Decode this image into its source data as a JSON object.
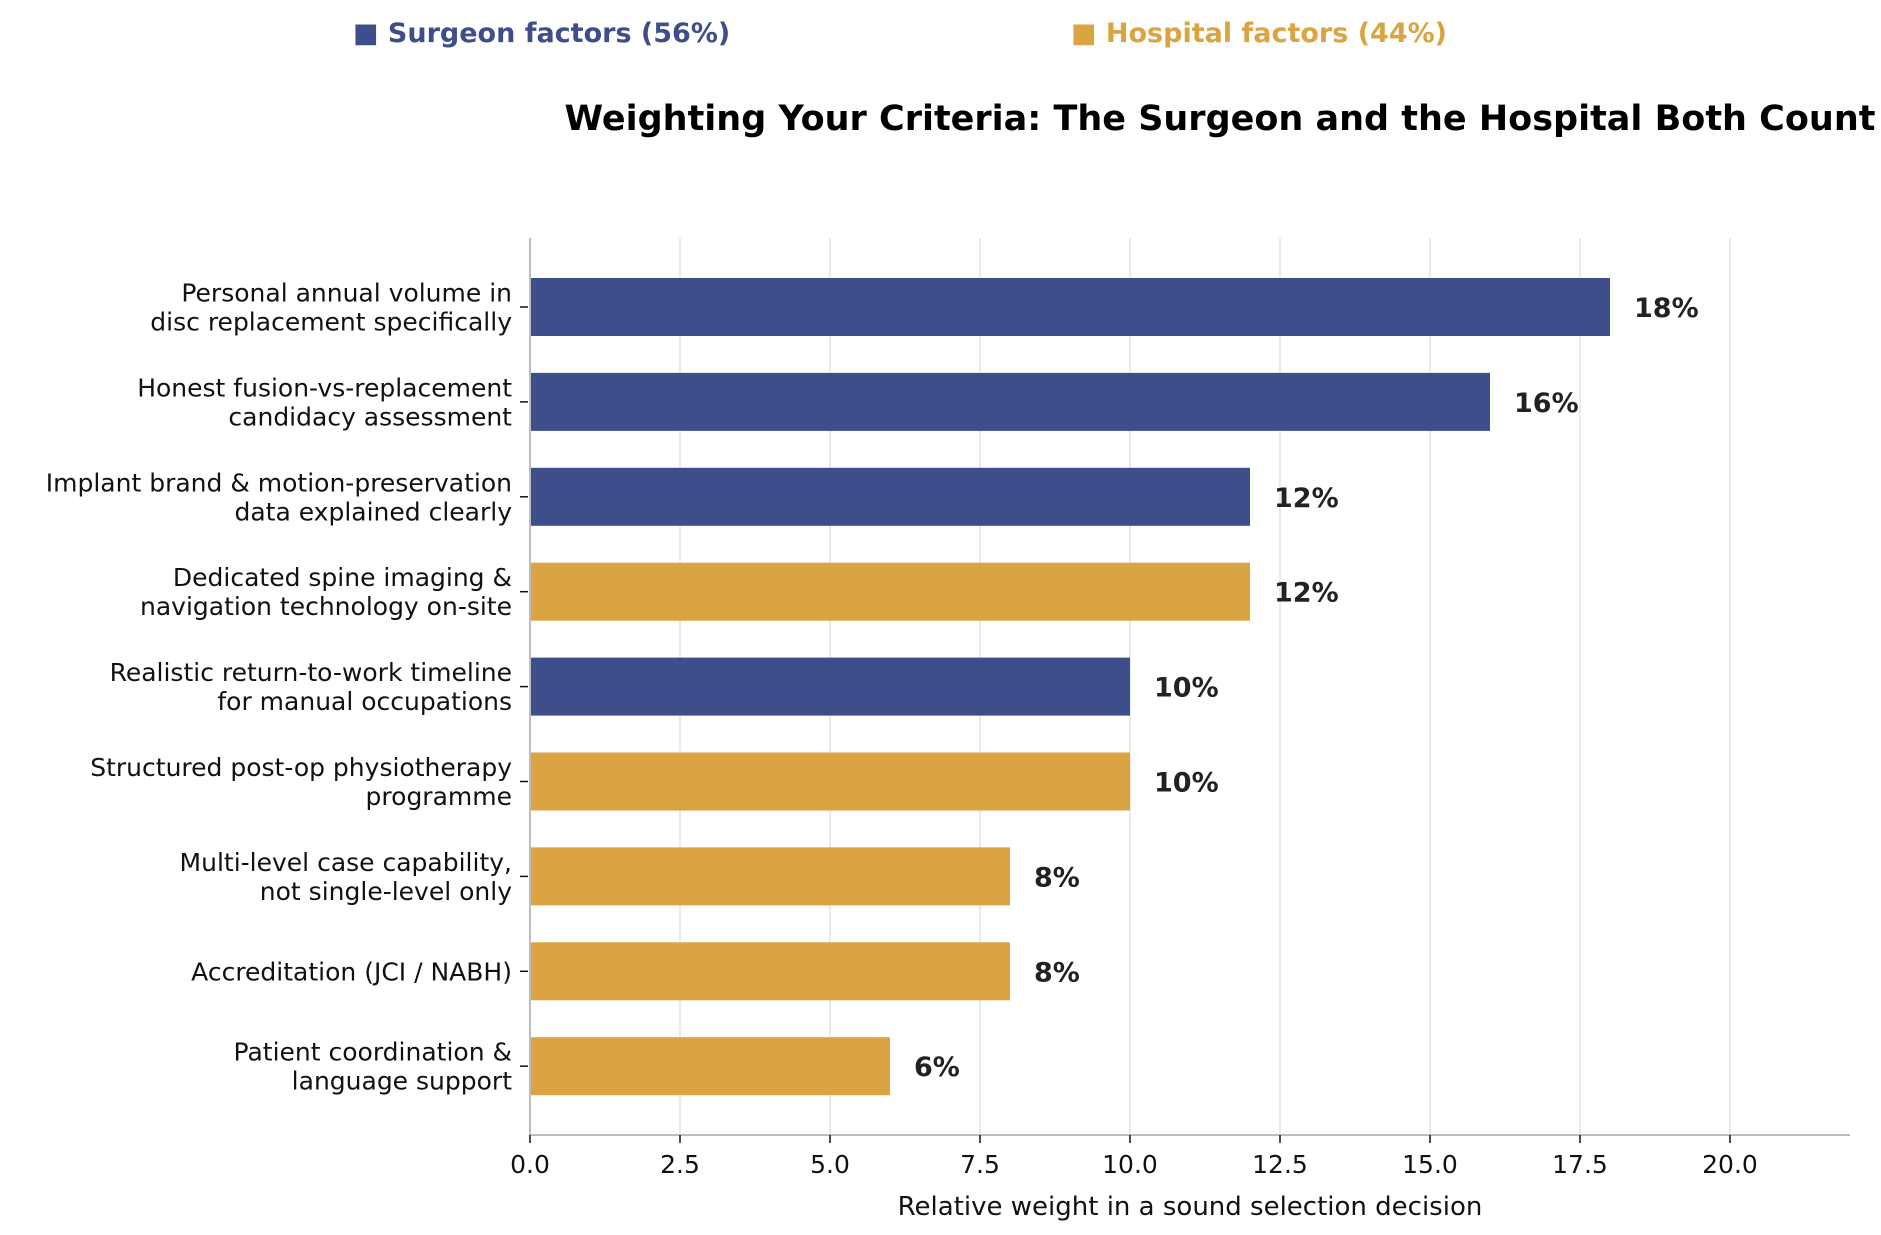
{
  "chart_data": {
    "type": "bar",
    "orientation": "horizontal",
    "title": "Weighting Your Criteria: The Surgeon and the Hospital Both Count",
    "xlabel": "Relative weight in a sound selection decision",
    "ylabel": "",
    "xlim": [
      0,
      22
    ],
    "xticks": [
      0.0,
      2.5,
      5.0,
      7.5,
      10.0,
      12.5,
      15.0,
      17.5,
      20.0
    ],
    "xtick_labels": [
      "0.0",
      "2.5",
      "5.0",
      "7.5",
      "10.0",
      "12.5",
      "15.0",
      "17.5",
      "20.0"
    ],
    "grid": "vertical",
    "legend": {
      "placement": "top",
      "entries": [
        {
          "marker": "■",
          "label": "Surgeon factors (56%)",
          "color": "#3d4e8a"
        },
        {
          "marker": "■",
          "label": "Hospital factors (44%)",
          "color": "#d9a441"
        }
      ]
    },
    "categories": [
      [
        "Personal annual volume in",
        "disc replacement specifically"
      ],
      [
        "Honest fusion-vs-replacement",
        "candidacy assessment"
      ],
      [
        "Implant brand & motion-preservation",
        "data explained clearly"
      ],
      [
        "Dedicated spine imaging &",
        "navigation technology on-site"
      ],
      [
        "Realistic return-to-work timeline",
        "for manual occupations"
      ],
      [
        "Structured post-op physiotherapy",
        "programme"
      ],
      [
        "Multi-level case capability,",
        "not single-level only"
      ],
      [
        "Accreditation (JCI / NABH)"
      ],
      [
        "Patient coordination &",
        "language support"
      ]
    ],
    "values": [
      18,
      16,
      12,
      12,
      10,
      10,
      8,
      8,
      6
    ],
    "value_labels": [
      "18%",
      "16%",
      "12%",
      "12%",
      "10%",
      "10%",
      "8%",
      "8%",
      "6%"
    ],
    "groups": [
      "surgeon",
      "surgeon",
      "surgeon",
      "hospital",
      "surgeon",
      "hospital",
      "hospital",
      "hospital",
      "hospital"
    ],
    "colors": {
      "surgeon": "#3d4e8a",
      "hospital": "#d9a441"
    }
  }
}
